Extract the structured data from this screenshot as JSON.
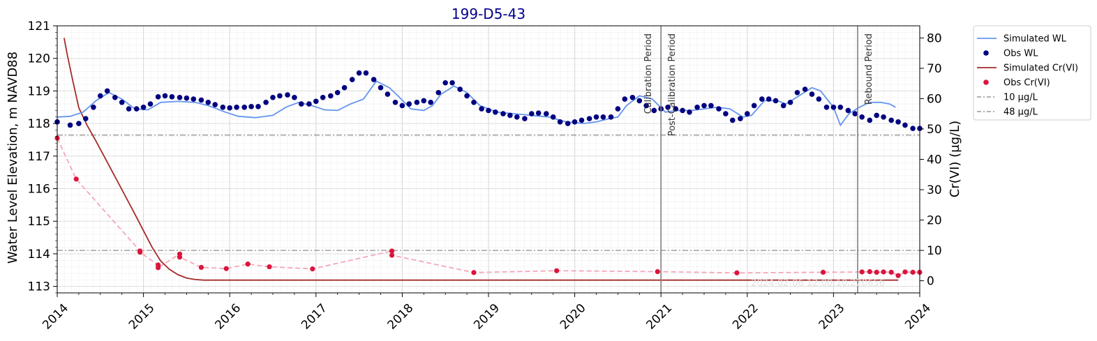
{
  "chart_data": {
    "type": "line",
    "title": "199-D5-43",
    "ylabel_left": "Water Level Elevation, m NAVD88",
    "ylabel_right": "Cr(VI) (µg/L)",
    "x_range": [
      2014.0,
      2024.0
    ],
    "x_ticks": [
      "2014",
      "2015",
      "2016",
      "2017",
      "2018",
      "2019",
      "2020",
      "2021",
      "2022",
      "2023",
      "2024"
    ],
    "y_left_range": [
      112.8,
      121.0
    ],
    "y_left_ticks": [
      "113",
      "114",
      "115",
      "116",
      "117",
      "118",
      "119",
      "120",
      "121"
    ],
    "y_right_range": [
      -4.0,
      84.0
    ],
    "y_right_ticks": [
      "0",
      "10",
      "20",
      "30",
      "40",
      "50",
      "60",
      "70",
      "80"
    ],
    "grid": true,
    "legend_position": "outside-right",
    "watermark": "2024-02-06 12:00:10.220656",
    "legend": [
      {
        "label": "Simulated WL",
        "kind": "line",
        "color": "#6495ed"
      },
      {
        "label": "Obs WL",
        "kind": "dot",
        "color": "#000080"
      },
      {
        "label": "Simulated Cr(VI)",
        "kind": "line",
        "color": "#a52a2a"
      },
      {
        "label": "Obs Cr(VI)",
        "kind": "dot",
        "color": "#dc143c"
      },
      {
        "label": "10 µg/L",
        "kind": "dashdot",
        "color": "#808080"
      },
      {
        "label": "48 µg/L",
        "kind": "dashdot",
        "color": "#808080"
      }
    ],
    "thresholds": [
      {
        "name": "10 µg/L",
        "value": 10
      },
      {
        "name": "48 µg/L",
        "value": 48
      }
    ],
    "periods": [
      {
        "label": "Calibration Period",
        "x": 2021.0,
        "side": "left"
      },
      {
        "label": "Post-Calibration Period",
        "x": 2021.0,
        "side": "right"
      },
      {
        "label": "Rebound Period",
        "x": 2023.28,
        "side": "right"
      }
    ],
    "series": [
      {
        "name": "Simulated WL",
        "axis": "left",
        "style": "line",
        "color": "#6495ed",
        "x": [
          2014.0,
          2014.15,
          2014.3,
          2014.45,
          2014.6,
          2014.75,
          2014.9,
          2015.05,
          2015.2,
          2015.4,
          2015.6,
          2015.75,
          2015.95,
          2016.1,
          2016.3,
          2016.5,
          2016.65,
          2016.8,
          2016.95,
          2017.1,
          2017.25,
          2017.4,
          2017.55,
          2017.7,
          2017.85,
          2017.95,
          2018.1,
          2018.25,
          2018.35,
          2018.45,
          2018.6,
          2018.75,
          2018.9,
          2019.1,
          2019.3,
          2019.5,
          2019.7,
          2019.9,
          2020.1,
          2020.25,
          2020.4,
          2020.5,
          2020.6,
          2020.75,
          2020.9,
          2021.05,
          2021.2,
          2021.35,
          2021.5,
          2021.65,
          2021.8,
          2021.95,
          2022.05,
          2022.2,
          2022.35,
          2022.45,
          2022.6,
          2022.75,
          2022.85,
          2023.0,
          2023.08,
          2023.18,
          2023.3,
          2023.42,
          2023.55,
          2023.65,
          2023.72
        ],
        "y": [
          118.2,
          118.22,
          118.35,
          118.7,
          118.95,
          118.75,
          118.45,
          118.42,
          118.65,
          118.68,
          118.65,
          118.55,
          118.35,
          118.22,
          118.18,
          118.25,
          118.5,
          118.65,
          118.55,
          118.42,
          118.4,
          118.6,
          118.75,
          119.3,
          119.1,
          118.85,
          118.45,
          118.4,
          118.55,
          118.9,
          119.15,
          118.95,
          118.55,
          118.35,
          118.3,
          118.25,
          118.2,
          118.05,
          118.0,
          118.05,
          118.15,
          118.2,
          118.55,
          118.85,
          118.75,
          118.35,
          118.4,
          118.4,
          118.45,
          118.5,
          118.45,
          118.2,
          118.25,
          118.7,
          118.7,
          118.6,
          118.85,
          119.1,
          119.0,
          118.5,
          117.95,
          118.3,
          118.5,
          118.65,
          118.65,
          118.6,
          118.5
        ]
      },
      {
        "name": "Obs WL",
        "axis": "left",
        "style": "scatter",
        "color": "#000080",
        "x": [
          2014.0,
          2014.15,
          2014.25,
          2014.33,
          2014.42,
          2014.5,
          2014.58,
          2014.67,
          2014.75,
          2014.83,
          2014.92,
          2015.0,
          2015.08,
          2015.17,
          2015.25,
          2015.33,
          2015.42,
          2015.5,
          2015.58,
          2015.67,
          2015.75,
          2015.83,
          2015.92,
          2016.0,
          2016.08,
          2016.17,
          2016.25,
          2016.33,
          2016.42,
          2016.5,
          2016.58,
          2016.67,
          2016.75,
          2016.83,
          2016.92,
          2017.0,
          2017.08,
          2017.17,
          2017.25,
          2017.33,
          2017.42,
          2017.5,
          2017.58,
          2017.67,
          2017.75,
          2017.83,
          2017.92,
          2018.0,
          2018.08,
          2018.17,
          2018.25,
          2018.33,
          2018.42,
          2018.5,
          2018.58,
          2018.67,
          2018.75,
          2018.83,
          2018.92,
          2019.0,
          2019.08,
          2019.17,
          2019.25,
          2019.33,
          2019.42,
          2019.5,
          2019.58,
          2019.67,
          2019.75,
          2019.83,
          2019.92,
          2020.0,
          2020.08,
          2020.17,
          2020.25,
          2020.33,
          2020.42,
          2020.5,
          2020.58,
          2020.67,
          2020.75,
          2020.83,
          2020.92,
          2021.0,
          2021.08,
          2021.17,
          2021.25,
          2021.33,
          2021.42,
          2021.5,
          2021.58,
          2021.67,
          2021.75,
          2021.83,
          2021.92,
          2022.0,
          2022.08,
          2022.17,
          2022.25,
          2022.33,
          2022.42,
          2022.5,
          2022.58,
          2022.67,
          2022.75,
          2022.83,
          2022.92,
          2023.0,
          2023.08,
          2023.17,
          2023.25,
          2023.33,
          2023.42,
          2023.5,
          2023.58,
          2023.67,
          2023.75,
          2023.83,
          2023.92,
          2024.0
        ],
        "y": [
          118.05,
          117.95,
          118.0,
          118.15,
          118.5,
          118.85,
          119.0,
          118.8,
          118.65,
          118.45,
          118.45,
          118.5,
          118.6,
          118.82,
          118.85,
          118.82,
          118.8,
          118.78,
          118.75,
          118.72,
          118.65,
          118.58,
          118.5,
          118.48,
          118.5,
          118.5,
          118.52,
          118.52,
          118.65,
          118.8,
          118.85,
          118.88,
          118.8,
          118.6,
          118.6,
          118.68,
          118.8,
          118.85,
          118.95,
          119.1,
          119.35,
          119.55,
          119.55,
          119.35,
          119.1,
          118.9,
          118.65,
          118.55,
          118.6,
          118.65,
          118.7,
          118.65,
          118.95,
          119.25,
          119.25,
          119.05,
          118.85,
          118.65,
          118.45,
          118.4,
          118.35,
          118.3,
          118.25,
          118.2,
          118.15,
          118.3,
          118.32,
          118.3,
          118.2,
          118.05,
          118.0,
          118.05,
          118.1,
          118.15,
          118.2,
          118.2,
          118.2,
          118.45,
          118.75,
          118.8,
          118.7,
          118.55,
          118.4,
          118.45,
          118.5,
          118.45,
          118.4,
          118.35,
          118.5,
          118.55,
          118.55,
          118.45,
          118.3,
          118.1,
          118.15,
          118.3,
          118.55,
          118.75,
          118.75,
          118.7,
          118.55,
          118.65,
          118.95,
          119.05,
          118.9,
          118.75,
          118.5,
          118.5,
          118.5,
          118.4,
          118.3,
          118.2,
          118.1,
          118.25,
          118.2,
          118.1,
          118.05,
          117.95,
          117.85,
          117.85
        ]
      },
      {
        "name": "Simulated Cr(VI)",
        "axis": "right",
        "style": "line",
        "color": "#a52a2a",
        "x": [
          2014.08,
          2014.12,
          2014.18,
          2014.25,
          2014.35,
          2014.45,
          2014.6,
          2014.75,
          2014.9,
          2015.0,
          2015.1,
          2015.2,
          2015.3,
          2015.4,
          2015.5,
          2015.6,
          2015.7,
          2016.0,
          2017.0,
          2018.0,
          2019.0,
          2020.0,
          2021.0,
          2022.0,
          2023.0,
          2023.75
        ],
        "y": [
          80.0,
          74.0,
          66.0,
          57.0,
          51.0,
          46.0,
          38.0,
          30.0,
          22.0,
          16.5,
          11.0,
          6.5,
          3.8,
          2.0,
          0.9,
          0.4,
          0.2,
          0.2,
          0.2,
          0.2,
          0.2,
          0.2,
          0.2,
          0.2,
          0.2,
          0.2
        ]
      },
      {
        "name": "Obs Cr(VI)",
        "axis": "right",
        "style": "scatter-dashed",
        "color": "#dc143c",
        "x": [
          2014.0,
          2014.22,
          2014.96,
          2014.96,
          2015.17,
          2015.17,
          2015.42,
          2015.42,
          2015.67,
          2015.96,
          2016.21,
          2016.46,
          2016.96,
          2017.88,
          2017.88,
          2018.83,
          2019.79,
          2020.96,
          2021.88,
          2022.88,
          2023.33,
          2023.42,
          2023.5,
          2023.58,
          2023.67,
          2023.75,
          2023.83,
          2023.92,
          2024.0
        ],
        "y": [
          47.0,
          33.5,
          9.8,
          9.4,
          5.2,
          4.3,
          8.8,
          7.8,
          4.4,
          4.0,
          5.5,
          4.6,
          3.9,
          9.8,
          8.4,
          2.7,
          3.3,
          3.0,
          2.6,
          2.8,
          2.9,
          3.0,
          2.8,
          2.9,
          2.8,
          1.7,
          2.9,
          2.8,
          2.8
        ]
      }
    ]
  }
}
